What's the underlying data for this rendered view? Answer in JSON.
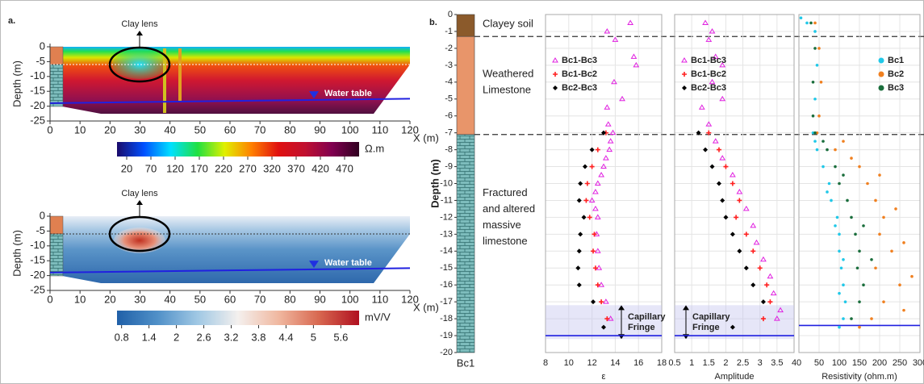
{
  "chart_data": [
    {
      "type": "section",
      "panel_label": "a.",
      "lens_label": "Clay lens",
      "water_label": "Water table",
      "ylabel": "Depth (m)",
      "xlabel": "X (m)",
      "xlim": [
        0,
        120
      ],
      "xticks": [
        0,
        10,
        20,
        30,
        40,
        50,
        60,
        70,
        80,
        90,
        100,
        110,
        120
      ],
      "ylim": [
        -25,
        0
      ],
      "yticks": [
        0,
        -5,
        -10,
        -15,
        -20,
        -25
      ],
      "water_table": [
        -19,
        -17.5
      ],
      "colorbar": {
        "unit": "Ω.m",
        "lim": [
          0,
          500
        ],
        "ticks": [
          20,
          70,
          120,
          170,
          220,
          270,
          320,
          370,
          420,
          470
        ],
        "colors": [
          "#1a0a6a",
          "#0050ff",
          "#00e0ff",
          "#20e040",
          "#e0f000",
          "#ff8000",
          "#e01010",
          "#c01030",
          "#800050",
          "#300020"
        ]
      }
    },
    {
      "type": "section",
      "lens_label": "Clay lens",
      "water_label": "Water table",
      "ylabel": "Depth (m)",
      "xlabel": "X (m)",
      "xlim": [
        0,
        120
      ],
      "xticks": [
        0,
        10,
        20,
        30,
        40,
        50,
        60,
        70,
        80,
        90,
        100,
        110,
        120
      ],
      "ylim": [
        -25,
        0
      ],
      "yticks": [
        0,
        -5,
        -10,
        -15,
        -20,
        -25
      ],
      "water_table": [
        -19,
        -17.5
      ],
      "colorbar": {
        "unit": "mV/V",
        "lim": [
          0.7,
          6.0
        ],
        "ticks": [
          0.8,
          1.4,
          2,
          2.6,
          3.2,
          3.8,
          4.4,
          5,
          5.6
        ],
        "colors": [
          "#2060a8",
          "#5090c8",
          "#a0c8e4",
          "#f4f0ee",
          "#f0b8a0",
          "#d86850",
          "#b01020"
        ]
      }
    },
    {
      "type": "column",
      "panel_label": "b.",
      "ylabel": "Depth (m)",
      "name": "Bc1",
      "ylim": [
        -20,
        0
      ],
      "yticks": [
        0,
        -1,
        -2,
        -3,
        -4,
        -5,
        -6,
        -7,
        -8,
        -9,
        -10,
        -11,
        -12,
        -13,
        -14,
        -15,
        -16,
        -17,
        -18,
        -19,
        -20
      ],
      "layers": [
        {
          "label": [
            "Clayey soil"
          ],
          "top": 0,
          "bottom": -1.3,
          "color": "#8b5a2b",
          "pattern": false
        },
        {
          "label": [
            "Weathered",
            "Limestone"
          ],
          "top": -1.3,
          "bottom": -7.1,
          "color": "#e8956a",
          "pattern": false
        },
        {
          "label": [
            "Fractured",
            "and altered",
            "massive",
            "limestone"
          ],
          "top": -7.1,
          "bottom": -20,
          "color": "#7dbcbc",
          "pattern": true
        }
      ]
    },
    {
      "type": "scatter",
      "xlabel": "ε",
      "xlim": [
        8,
        18
      ],
      "xticks": [
        8,
        10,
        12,
        14,
        16,
        18
      ],
      "ylim": [
        -20,
        0
      ],
      "legend": "upper-left",
      "water_depth": -19,
      "fringe": {
        "label": [
          "Capillary",
          "Fringe"
        ],
        "top": -17.2,
        "bottom": -19.2
      },
      "series": [
        {
          "name": "Bc1-Bc3",
          "color": "#e020e0",
          "marker": "triangle",
          "y": [
            -0.5,
            -1,
            -1.5,
            -2.5,
            -3,
            -4,
            -5,
            -5.5,
            -6.5,
            -7,
            -7.5,
            -8,
            -8.5,
            -9,
            -9.5,
            -10,
            -10.5,
            -11,
            -11.5,
            -12,
            -13,
            -14,
            -15,
            -16,
            -17,
            -18
          ],
          "x": [
            15.3,
            13.3,
            14.0,
            15.6,
            15.8,
            13.9,
            14.6,
            13.3,
            13.4,
            13.8,
            13.6,
            13.5,
            13.2,
            13.0,
            12.8,
            12.5,
            12.3,
            12.0,
            12.3,
            12.5,
            12.4,
            12.5,
            12.6,
            12.8,
            13.2,
            13.6
          ]
        },
        {
          "name": "Bc1-Bc2",
          "color": "#ff2020",
          "marker": "plus",
          "y": [
            -7,
            -8,
            -9,
            -10,
            -11,
            -12,
            -13,
            -14,
            -15,
            -16,
            -17,
            -18
          ],
          "x": [
            13.2,
            12.5,
            12.0,
            11.6,
            11.5,
            11.8,
            12.2,
            12.1,
            12.3,
            12.5,
            12.8,
            13.3
          ]
        },
        {
          "name": "Bc2-Bc3",
          "color": "#000000",
          "marker": "diamond",
          "y": [
            -7,
            -8,
            -9,
            -10,
            -11,
            -12,
            -13,
            -14,
            -15,
            -16,
            -17,
            -18.5
          ],
          "x": [
            13.0,
            12.0,
            11.4,
            11.0,
            10.9,
            11.3,
            11.0,
            10.9,
            10.8,
            10.9,
            12.1,
            13.0
          ]
        }
      ]
    },
    {
      "type": "scatter",
      "xlabel": "Amplitude",
      "xlim": [
        0.5,
        4
      ],
      "xticks": [
        0.5,
        1,
        1.5,
        2,
        2.5,
        3,
        3.5,
        4
      ],
      "ylim": [
        -20,
        0
      ],
      "legend": "upper-left",
      "water_depth": -19,
      "fringe": {
        "label": [
          "Capillary",
          "Fringe"
        ],
        "top": -17.2,
        "bottom": -19.2
      },
      "series": [
        {
          "name": "Bc1-Bc3",
          "color": "#e020e0",
          "marker": "triangle",
          "y": [
            -0.5,
            -1,
            -1.5,
            -2.5,
            -3,
            -4,
            -5,
            -5.5,
            -6.5,
            -7.5,
            -8.5,
            -9.5,
            -10.5,
            -11.5,
            -12.5,
            -13.5,
            -14.5,
            -15.5,
            -16.5,
            -17.5,
            -18
          ],
          "x": [
            1.4,
            1.6,
            1.5,
            1.7,
            1.9,
            1.6,
            1.9,
            1.3,
            1.5,
            1.7,
            1.9,
            2.2,
            2.4,
            2.6,
            2.8,
            2.9,
            3.1,
            3.3,
            3.4,
            3.6,
            3.5
          ]
        },
        {
          "name": "Bc1-Bc2",
          "color": "#ff2020",
          "marker": "plus",
          "y": [
            -7,
            -8,
            -9,
            -10,
            -11,
            -12,
            -13,
            -14,
            -15,
            -16,
            -17,
            -18
          ],
          "x": [
            1.5,
            1.8,
            2.0,
            2.2,
            2.4,
            2.3,
            2.6,
            2.8,
            3.0,
            3.2,
            3.3,
            3.1
          ]
        },
        {
          "name": "Bc2-Bc3",
          "color": "#000000",
          "marker": "diamond",
          "y": [
            -7,
            -8,
            -9,
            -10,
            -11,
            -12,
            -13,
            -14,
            -15,
            -16,
            -17,
            -18.5
          ],
          "x": [
            1.2,
            1.4,
            1.6,
            1.8,
            1.9,
            2.0,
            2.2,
            2.4,
            2.6,
            2.8,
            3.1,
            2.2
          ]
        }
      ]
    },
    {
      "type": "scatter",
      "xlabel": "Resistivity (ohm.m)",
      "xlim": [
        0,
        300
      ],
      "xticks": [
        0,
        50,
        100,
        150,
        200,
        250,
        300
      ],
      "ylim": [
        -20,
        0
      ],
      "legend": "upper-right",
      "water_depth": -18.4,
      "series": [
        {
          "name": "Bc1",
          "color": "#20c8e8",
          "marker": "dot",
          "y": [
            -0.2,
            -0.5,
            -1,
            -3,
            -5,
            -7,
            -7.5,
            -8,
            -9,
            -10,
            -10.5,
            -11,
            -12,
            -12.5,
            -13,
            -14,
            -14.5,
            -15,
            -16,
            -16.5,
            -17,
            -18,
            -18.5
          ],
          "x": [
            5,
            20,
            40,
            45,
            40,
            35,
            40,
            45,
            60,
            75,
            70,
            80,
            95,
            90,
            100,
            100,
            110,
            105,
            110,
            100,
            115,
            110,
            100
          ]
        },
        {
          "name": "Bc2",
          "color": "#f08020",
          "marker": "dot",
          "y": [
            -0.5,
            -2,
            -4,
            -6,
            -7,
            -7.5,
            -8,
            -8.5,
            -9,
            -9.5,
            -10,
            -11,
            -11.5,
            -12,
            -13,
            -13.5,
            -14,
            -15,
            -15.5,
            -16,
            -17,
            -17.5,
            -18,
            -18.5
          ],
          "x": [
            40,
            50,
            55,
            50,
            45,
            110,
            90,
            130,
            150,
            200,
            170,
            190,
            240,
            210,
            200,
            260,
            230,
            190,
            280,
            250,
            210,
            260,
            180,
            150
          ]
        },
        {
          "name": "Bc3",
          "color": "#1a6e3c",
          "marker": "dot",
          "y": [
            -0.5,
            -2,
            -4,
            -6,
            -7,
            -7.5,
            -8,
            -9,
            -9.5,
            -10,
            -11,
            -12,
            -12.5,
            -13,
            -14,
            -14.5,
            -15,
            -16,
            -17,
            -18
          ],
          "x": [
            30,
            40,
            35,
            35,
            40,
            60,
            70,
            90,
            110,
            100,
            120,
            130,
            160,
            140,
            150,
            180,
            145,
            160,
            150,
            130
          ]
        }
      ]
    }
  ]
}
